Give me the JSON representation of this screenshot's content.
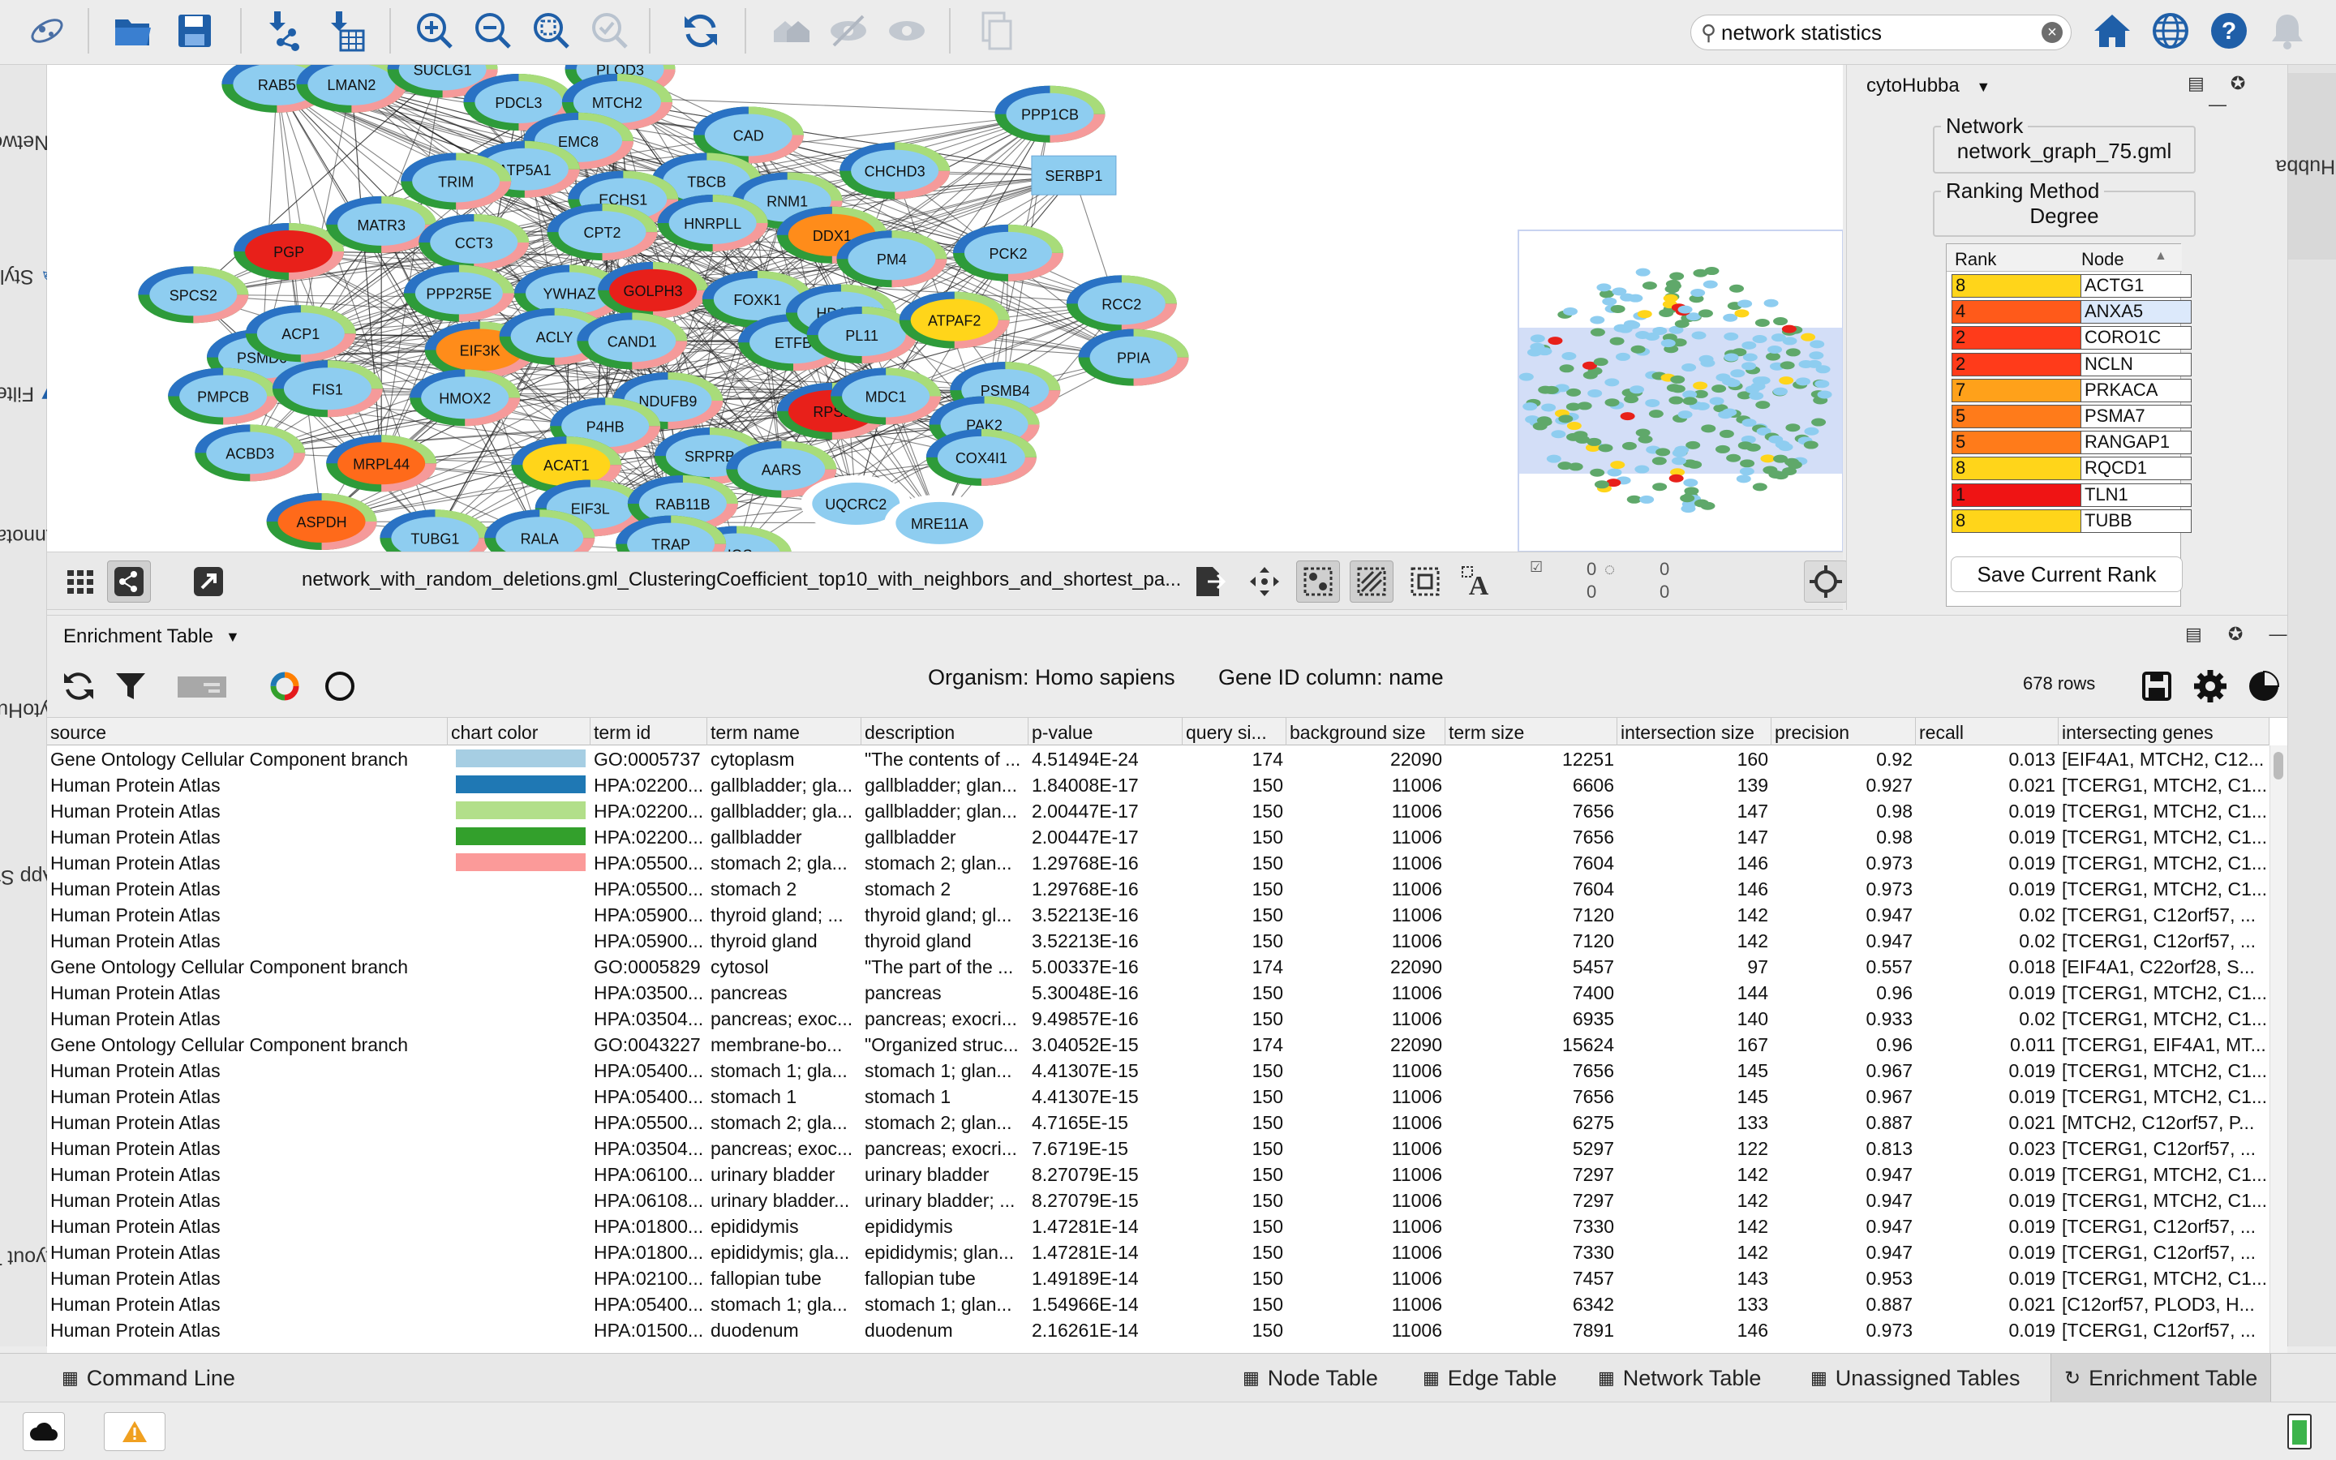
{
  "search": {
    "value": "network statistics"
  },
  "left_tabs": [
    "Network",
    "Style",
    "Filter",
    "Annotation",
    "cytoHubba",
    "App Store",
    "Layout Tools"
  ],
  "right_tab": "cytoHubba",
  "network": {
    "view_title": "network_with_random_deletions.gml_ClusteringCoefficient_top10_with_neighbors_and_shortest_pa...",
    "selected_nodes": "0",
    "hidden_nodes": "0",
    "selected_edges": "0",
    "hidden_edges": "0",
    "nodes": [
      {
        "label": "RAB5",
        "kind": "blue"
      },
      {
        "label": "LMAN2",
        "kind": "blue"
      },
      {
        "label": "SUCLG1",
        "kind": "blue"
      },
      {
        "label": "PLOD3",
        "kind": "blue"
      },
      {
        "label": "PDCL3",
        "kind": "blue"
      },
      {
        "label": "MTCH2",
        "kind": "blue"
      },
      {
        "label": "CAD",
        "kind": "blue"
      },
      {
        "label": "EMC8",
        "kind": "blue"
      },
      {
        "label": "PPP1CB",
        "kind": "blue"
      },
      {
        "label": "SERBP1",
        "kind": "box"
      },
      {
        "label": "ATP5A1",
        "kind": "blue"
      },
      {
        "label": "TRIM",
        "kind": "blue"
      },
      {
        "label": "TBCB",
        "kind": "blue"
      },
      {
        "label": "CHCHD3",
        "kind": "blue"
      },
      {
        "label": "ECHS1",
        "kind": "blue"
      },
      {
        "label": "RNM1",
        "kind": "blue"
      },
      {
        "label": "PGP",
        "kind": "red"
      },
      {
        "label": "MATR3",
        "kind": "blue"
      },
      {
        "label": "CCT3",
        "kind": "blue"
      },
      {
        "label": "CPT2",
        "kind": "blue"
      },
      {
        "label": "HNRPLL",
        "kind": "blue"
      },
      {
        "label": "DDX1",
        "kind": "orange"
      },
      {
        "label": "PCK2",
        "kind": "blue"
      },
      {
        "label": "PM4",
        "kind": "blue"
      },
      {
        "label": "SPCS2",
        "kind": "blue"
      },
      {
        "label": "PPP2R5E",
        "kind": "blue"
      },
      {
        "label": "YWHAZ",
        "kind": "blue"
      },
      {
        "label": "GOLPH3",
        "kind": "red"
      },
      {
        "label": "FOXK1",
        "kind": "blue"
      },
      {
        "label": "RCC2",
        "kind": "blue"
      },
      {
        "label": "PSMD6",
        "kind": "blue"
      },
      {
        "label": "ACP1",
        "kind": "blue"
      },
      {
        "label": "EIF3K",
        "kind": "orange"
      },
      {
        "label": "ACLY",
        "kind": "blue"
      },
      {
        "label": "CAND1",
        "kind": "blue"
      },
      {
        "label": "ETFB",
        "kind": "blue"
      },
      {
        "label": "HDAC1",
        "kind": "blue"
      },
      {
        "label": "PL11",
        "kind": "blue"
      },
      {
        "label": "ATPAF2",
        "kind": "yellow"
      },
      {
        "label": "PPIA",
        "kind": "blue"
      },
      {
        "label": "PMPCB",
        "kind": "blue"
      },
      {
        "label": "FIS1",
        "kind": "blue"
      },
      {
        "label": "HMOX2",
        "kind": "blue"
      },
      {
        "label": "NDUFB9",
        "kind": "blue"
      },
      {
        "label": "RPS8",
        "kind": "red"
      },
      {
        "label": "PSMB4",
        "kind": "blue"
      },
      {
        "label": "MDC1",
        "kind": "blue"
      },
      {
        "label": "P4HB",
        "kind": "blue"
      },
      {
        "label": "PAK2",
        "kind": "blue"
      },
      {
        "label": "ACBD3",
        "kind": "blue"
      },
      {
        "label": "MRPL44",
        "kind": "orange2"
      },
      {
        "label": "ACAT1",
        "kind": "yellow"
      },
      {
        "label": "SRPRB",
        "kind": "blue"
      },
      {
        "label": "AARS",
        "kind": "blue"
      },
      {
        "label": "COX4I1",
        "kind": "blue"
      },
      {
        "label": "ASPDH",
        "kind": "orange2"
      },
      {
        "label": "EIF3L",
        "kind": "blue"
      },
      {
        "label": "RAB11B",
        "kind": "blue"
      },
      {
        "label": "UQCRC2",
        "kind": "white"
      },
      {
        "label": "MRE11A",
        "kind": "white"
      },
      {
        "label": "TUBG1",
        "kind": "blue"
      },
      {
        "label": "RALA",
        "kind": "blue"
      },
      {
        "label": "HGS",
        "kind": "blue"
      },
      {
        "label": "TRAP",
        "kind": "blue"
      }
    ]
  },
  "cytohubba": {
    "title": "cytoHubba",
    "network_label": "Network",
    "network_value": "network_graph_75.gml",
    "ranking_label": "Ranking Method",
    "ranking_value": "Degree",
    "col_rank": "Rank",
    "col_node": "Node",
    "rows": [
      {
        "rank": "8",
        "node": "ACTG1",
        "color": "#ffd51a"
      },
      {
        "rank": "4",
        "node": "ANXA5",
        "color": "#ff5a1a"
      },
      {
        "rank": "2",
        "node": "CORO1C",
        "color": "#ff3b1a"
      },
      {
        "rank": "2",
        "node": "NCLN",
        "color": "#ff3b1a"
      },
      {
        "rank": "7",
        "node": "PRKACA",
        "color": "#ffa11a"
      },
      {
        "rank": "5",
        "node": "PSMA7",
        "color": "#ff7b1a"
      },
      {
        "rank": "5",
        "node": "RANGAP1",
        "color": "#ff7b1a"
      },
      {
        "rank": "8",
        "node": "RQCD1",
        "color": "#ffd51a"
      },
      {
        "rank": "1",
        "node": "TLN1",
        "color": "#ef1414"
      },
      {
        "rank": "8",
        "node": "TUBB",
        "color": "#ffd51a"
      }
    ],
    "save_label": "Save Current Rank"
  },
  "enrichment": {
    "title": "Enrichment Table",
    "organism": "Organism: Homo sapiens",
    "gene_id": "Gene ID column: name",
    "row_count": "678 rows",
    "columns": [
      "source",
      "chart color",
      "term id",
      "term name",
      "description",
      "p-value",
      "query si...",
      "background size",
      "term size",
      "intersection size",
      "precision",
      "recall",
      "intersecting genes"
    ],
    "rows": [
      {
        "source": "Gene Ontology Cellular Component branch",
        "color": "#a6cee3",
        "term_id": "GO:0005737",
        "term_name": "cytoplasm",
        "description": "\"The contents of ...",
        "pvalue": "4.51494E-24",
        "query": "174",
        "background": "22090",
        "term_size": "12251",
        "intersection": "160",
        "precision": "0.92",
        "recall": "0.013",
        "genes": "[EIF4A1, MTCH2, C12..."
      },
      {
        "source": "Human Protein Atlas",
        "color": "#1f78b4",
        "term_id": "HPA:02200...",
        "term_name": "gallbladder; gla...",
        "description": "gallbladder; glan...",
        "pvalue": "1.84008E-17",
        "query": "150",
        "background": "11006",
        "term_size": "6606",
        "intersection": "139",
        "precision": "0.927",
        "recall": "0.021",
        "genes": "[TCERG1, MTCH2, C1..."
      },
      {
        "source": "Human Protein Atlas",
        "color": "#b2df8a",
        "term_id": "HPA:02200...",
        "term_name": "gallbladder; gla...",
        "description": "gallbladder; glan...",
        "pvalue": "2.00447E-17",
        "query": "150",
        "background": "11006",
        "term_size": "7656",
        "intersection": "147",
        "precision": "0.98",
        "recall": "0.019",
        "genes": "[TCERG1, MTCH2, C1..."
      },
      {
        "source": "Human Protein Atlas",
        "color": "#33a02c",
        "term_id": "HPA:02200...",
        "term_name": "gallbladder",
        "description": "gallbladder",
        "pvalue": "2.00447E-17",
        "query": "150",
        "background": "11006",
        "term_size": "7656",
        "intersection": "147",
        "precision": "0.98",
        "recall": "0.019",
        "genes": "[TCERG1, MTCH2, C1..."
      },
      {
        "source": "Human Protein Atlas",
        "color": "#fb9a99",
        "term_id": "HPA:05500...",
        "term_name": "stomach 2; gla...",
        "description": "stomach 2; glan...",
        "pvalue": "1.29768E-16",
        "query": "150",
        "background": "11006",
        "term_size": "7604",
        "intersection": "146",
        "precision": "0.973",
        "recall": "0.019",
        "genes": "[TCERG1, MTCH2, C1..."
      },
      {
        "source": "Human Protein Atlas",
        "color": "",
        "term_id": "HPA:05500...",
        "term_name": "stomach 2",
        "description": "stomach 2",
        "pvalue": "1.29768E-16",
        "query": "150",
        "background": "11006",
        "term_size": "7604",
        "intersection": "146",
        "precision": "0.973",
        "recall": "0.019",
        "genes": "[TCERG1, MTCH2, C1..."
      },
      {
        "source": "Human Protein Atlas",
        "color": "",
        "term_id": "HPA:05900...",
        "term_name": "thyroid gland; ...",
        "description": "thyroid gland; gl...",
        "pvalue": "3.52213E-16",
        "query": "150",
        "background": "11006",
        "term_size": "7120",
        "intersection": "142",
        "precision": "0.947",
        "recall": "0.02",
        "genes": "[TCERG1, C12orf57, ..."
      },
      {
        "source": "Human Protein Atlas",
        "color": "",
        "term_id": "HPA:05900...",
        "term_name": "thyroid gland",
        "description": "thyroid gland",
        "pvalue": "3.52213E-16",
        "query": "150",
        "background": "11006",
        "term_size": "7120",
        "intersection": "142",
        "precision": "0.947",
        "recall": "0.02",
        "genes": "[TCERG1, C12orf57, ..."
      },
      {
        "source": "Gene Ontology Cellular Component branch",
        "color": "",
        "term_id": "GO:0005829",
        "term_name": "cytosol",
        "description": "\"The part of the ...",
        "pvalue": "5.00337E-16",
        "query": "174",
        "background": "22090",
        "term_size": "5457",
        "intersection": "97",
        "precision": "0.557",
        "recall": "0.018",
        "genes": "[EIF4A1, C22orf28, S..."
      },
      {
        "source": "Human Protein Atlas",
        "color": "",
        "term_id": "HPA:03500...",
        "term_name": "pancreas",
        "description": "pancreas",
        "pvalue": "5.30048E-16",
        "query": "150",
        "background": "11006",
        "term_size": "7400",
        "intersection": "144",
        "precision": "0.96",
        "recall": "0.019",
        "genes": "[TCERG1, MTCH2, C1..."
      },
      {
        "source": "Human Protein Atlas",
        "color": "",
        "term_id": "HPA:03504...",
        "term_name": "pancreas; exoc...",
        "description": "pancreas; exocri...",
        "pvalue": "9.49857E-16",
        "query": "150",
        "background": "11006",
        "term_size": "6935",
        "intersection": "140",
        "precision": "0.933",
        "recall": "0.02",
        "genes": "[TCERG1, MTCH2, C1..."
      },
      {
        "source": "Gene Ontology Cellular Component branch",
        "color": "",
        "term_id": "GO:0043227",
        "term_name": "membrane-bo...",
        "description": "\"Organized struc...",
        "pvalue": "3.04052E-15",
        "query": "174",
        "background": "22090",
        "term_size": "15624",
        "intersection": "167",
        "precision": "0.96",
        "recall": "0.011",
        "genes": "[TCERG1, EIF4A1, MT..."
      },
      {
        "source": "Human Protein Atlas",
        "color": "",
        "term_id": "HPA:05400...",
        "term_name": "stomach 1; gla...",
        "description": "stomach 1; glan...",
        "pvalue": "4.41307E-15",
        "query": "150",
        "background": "11006",
        "term_size": "7656",
        "intersection": "145",
        "precision": "0.967",
        "recall": "0.019",
        "genes": "[TCERG1, MTCH2, C1..."
      },
      {
        "source": "Human Protein Atlas",
        "color": "",
        "term_id": "HPA:05400...",
        "term_name": "stomach 1",
        "description": "stomach 1",
        "pvalue": "4.41307E-15",
        "query": "150",
        "background": "11006",
        "term_size": "7656",
        "intersection": "145",
        "precision": "0.967",
        "recall": "0.019",
        "genes": "[TCERG1, MTCH2, C1..."
      },
      {
        "source": "Human Protein Atlas",
        "color": "",
        "term_id": "HPA:05500...",
        "term_name": "stomach 2; gla...",
        "description": "stomach 2; glan...",
        "pvalue": "4.7165E-15",
        "query": "150",
        "background": "11006",
        "term_size": "6275",
        "intersection": "133",
        "precision": "0.887",
        "recall": "0.021",
        "genes": "[MTCH2, C12orf57, P..."
      },
      {
        "source": "Human Protein Atlas",
        "color": "",
        "term_id": "HPA:03504...",
        "term_name": "pancreas; exoc...",
        "description": "pancreas; exocri...",
        "pvalue": "7.6719E-15",
        "query": "150",
        "background": "11006",
        "term_size": "5297",
        "intersection": "122",
        "precision": "0.813",
        "recall": "0.023",
        "genes": "[TCERG1, C12orf57, ..."
      },
      {
        "source": "Human Protein Atlas",
        "color": "",
        "term_id": "HPA:06100...",
        "term_name": "urinary bladder",
        "description": "urinary bladder",
        "pvalue": "8.27079E-15",
        "query": "150",
        "background": "11006",
        "term_size": "7297",
        "intersection": "142",
        "precision": "0.947",
        "recall": "0.019",
        "genes": "[TCERG1, MTCH2, C1..."
      },
      {
        "source": "Human Protein Atlas",
        "color": "",
        "term_id": "HPA:06108...",
        "term_name": "urinary bladder...",
        "description": "urinary bladder; ...",
        "pvalue": "8.27079E-15",
        "query": "150",
        "background": "11006",
        "term_size": "7297",
        "intersection": "142",
        "precision": "0.947",
        "recall": "0.019",
        "genes": "[TCERG1, MTCH2, C1..."
      },
      {
        "source": "Human Protein Atlas",
        "color": "",
        "term_id": "HPA:01800...",
        "term_name": "epididymis",
        "description": "epididymis",
        "pvalue": "1.47281E-14",
        "query": "150",
        "background": "11006",
        "term_size": "7330",
        "intersection": "142",
        "precision": "0.947",
        "recall": "0.019",
        "genes": "[TCERG1, C12orf57, ..."
      },
      {
        "source": "Human Protein Atlas",
        "color": "",
        "term_id": "HPA:01800...",
        "term_name": "epididymis; gla...",
        "description": "epididymis; glan...",
        "pvalue": "1.47281E-14",
        "query": "150",
        "background": "11006",
        "term_size": "7330",
        "intersection": "142",
        "precision": "0.947",
        "recall": "0.019",
        "genes": "[TCERG1, C12orf57, ..."
      },
      {
        "source": "Human Protein Atlas",
        "color": "",
        "term_id": "HPA:02100...",
        "term_name": "fallopian tube",
        "description": "fallopian tube",
        "pvalue": "1.49189E-14",
        "query": "150",
        "background": "11006",
        "term_size": "7457",
        "intersection": "143",
        "precision": "0.953",
        "recall": "0.019",
        "genes": "[TCERG1, MTCH2, C1..."
      },
      {
        "source": "Human Protein Atlas",
        "color": "",
        "term_id": "HPA:05400...",
        "term_name": "stomach 1; gla...",
        "description": "stomach 1; glan...",
        "pvalue": "1.54966E-14",
        "query": "150",
        "background": "11006",
        "term_size": "6342",
        "intersection": "133",
        "precision": "0.887",
        "recall": "0.021",
        "genes": "[C12orf57, PLOD3, H..."
      },
      {
        "source": "Human Protein Atlas",
        "color": "",
        "term_id": "HPA:01500...",
        "term_name": "duodenum",
        "description": "duodenum",
        "pvalue": "2.16261E-14",
        "query": "150",
        "background": "11006",
        "term_size": "7891",
        "intersection": "146",
        "precision": "0.973",
        "recall": "0.019",
        "genes": "[TCERG1, C12orf57, ..."
      }
    ]
  },
  "bottom_tabs": {
    "command_line": "Command Line",
    "node_table": "Node Table",
    "edge_table": "Edge Table",
    "network_table": "Network Table",
    "unassigned": "Unassigned Tables",
    "enrichment": "Enrichment Table"
  },
  "colors": {
    "accent": "#1f5fa8",
    "node_blue": "#8ecdf0",
    "node_red": "#e8201a",
    "node_orange": "#ff8c1a",
    "node_yellow": "#ffd51a"
  }
}
